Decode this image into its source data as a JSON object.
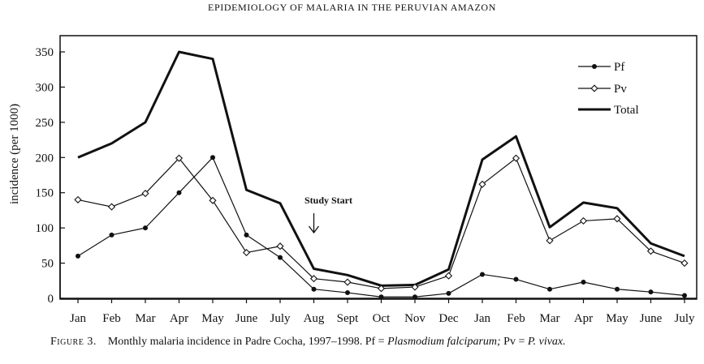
{
  "page_header": "EPIDEMIOLOGY OF MALARIA IN THE PERUVIAN AMAZON",
  "caption": {
    "label": "Figure 3.",
    "text1": "Monthly malaria incidence in Padre Cocha, 1997–1998. Pf = ",
    "em1": "Plasmodium falciparum;",
    "text2": " Pv = ",
    "em2": "P. vivax."
  },
  "chart_data": {
    "type": "line",
    "title": "",
    "xlabel": "",
    "ylabel": "incidence  (per 1000)",
    "categories": [
      "Jan",
      "Feb",
      "Mar",
      "Apr",
      "May",
      "June",
      "July",
      "Aug",
      "Sept",
      "Oct",
      "Nov",
      "Dec",
      "Jan",
      "Feb",
      "Mar",
      "Apr",
      "May",
      "June",
      "July"
    ],
    "ylim": [
      0,
      350
    ],
    "yticks": [
      0,
      50,
      100,
      150,
      200,
      250,
      300,
      350
    ],
    "grid": false,
    "legend_position": "top-right",
    "series": [
      {
        "name": "Pf",
        "marker": "filled-circle",
        "line": "thin",
        "values": [
          60,
          90,
          100,
          150,
          200,
          90,
          58,
          13,
          8,
          2,
          2,
          7,
          34,
          27,
          13,
          23,
          13,
          9,
          4
        ]
      },
      {
        "name": "Pv",
        "marker": "open-diamond",
        "line": "thin",
        "values": [
          140,
          130,
          149,
          199,
          139,
          65,
          74,
          28,
          23,
          14,
          16,
          32,
          162,
          199,
          82,
          110,
          113,
          67,
          50
        ]
      },
      {
        "name": "Total",
        "marker": "none",
        "line": "thick",
        "values": [
          200,
          220,
          250,
          350,
          340,
          154,
          135,
          42,
          33,
          18,
          19,
          41,
          197,
          230,
          101,
          136,
          128,
          78,
          60
        ]
      }
    ],
    "annotations": [
      {
        "text": "Study Start",
        "category_index": 7,
        "arrow": "down"
      }
    ]
  }
}
